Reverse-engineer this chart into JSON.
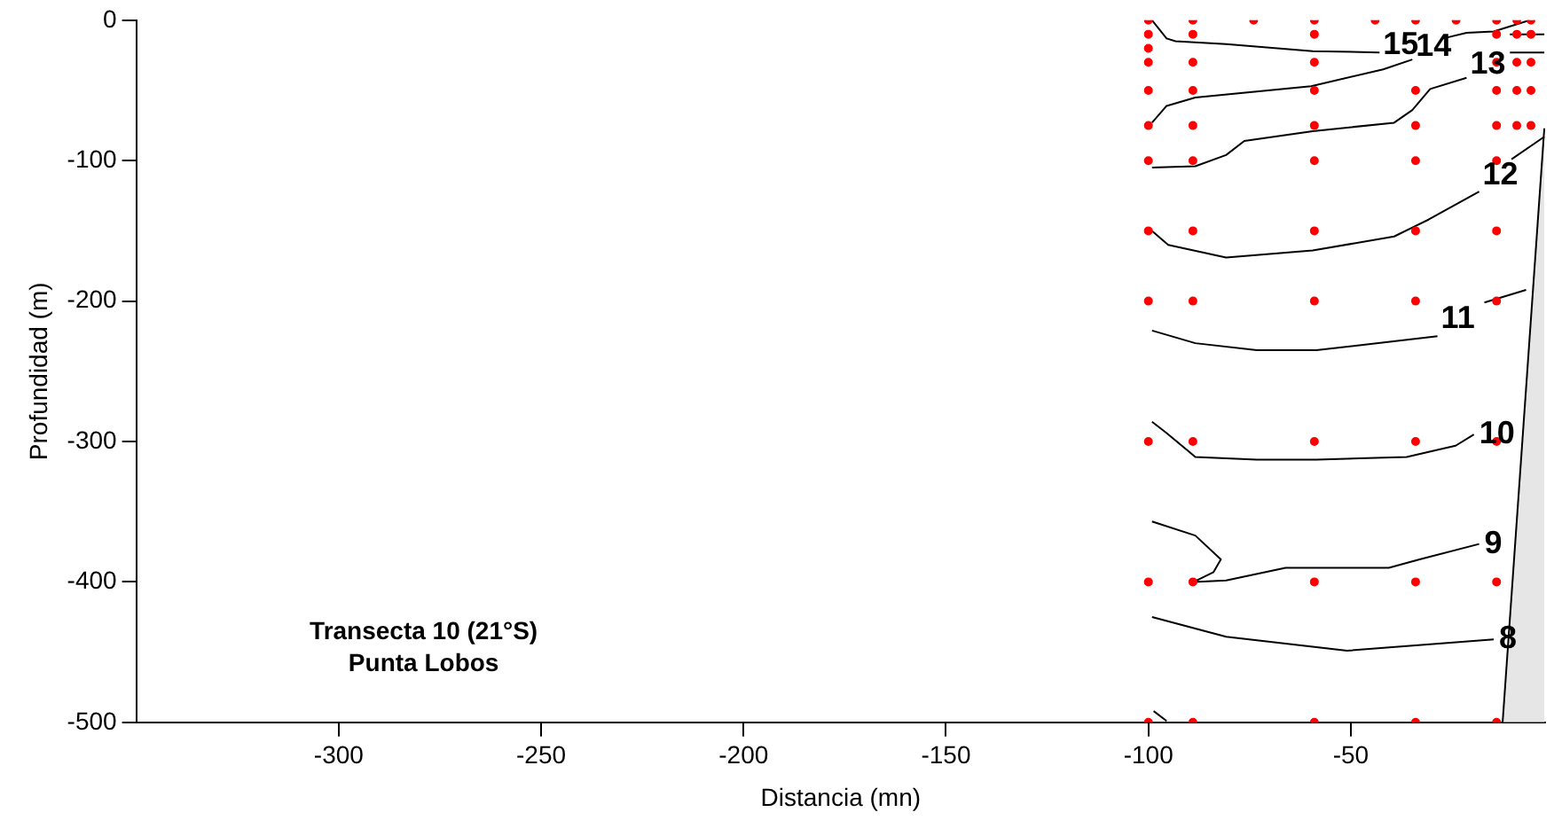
{
  "chart_data": {
    "type": "line",
    "xlabel": "Distancia (mn)",
    "ylabel": "Profundidad (m)",
    "xlim": [
      -350,
      -2
    ],
    "ylim": [
      -500,
      0
    ],
    "xticks": [
      -300,
      -250,
      -200,
      -150,
      -100,
      -50
    ],
    "yticks": [
      -500,
      -400,
      -300,
      -200,
      -100,
      0
    ],
    "grid": false,
    "legend": false,
    "marker": "none",
    "line_style": "solid",
    "series": [
      {
        "type": "area",
        "color": "#e6e6e6",
        "x": [
          -12.5,
          -2.2
        ],
        "values": [
          -500,
          -77
        ]
      },
      {
        "name": "15",
        "color": "#000000",
        "x": [
          -99.1,
          -95.5,
          -93.3,
          -80.8,
          -59.4,
          -42.9,
          -35,
          -27.2,
          -21.4,
          -14.7,
          -5.8
        ],
        "values": [
          0,
          -13,
          -15,
          -17,
          -22,
          -23,
          null,
          -13,
          -9,
          -8,
          0
        ]
      },
      {
        "name": "14",
        "color": "#000000",
        "x": [
          -99.1,
          -95.5,
          -88.4,
          -59.8,
          -42,
          -34.8,
          -20,
          -10.7,
          -2.2
        ],
        "values": [
          -73,
          -61,
          -55,
          -47,
          -35,
          -28,
          null,
          -10,
          -10
        ]
      },
      {
        "name": "13",
        "color": "#000000",
        "x": [
          -99.1,
          -88.4,
          -80.8,
          -76.3,
          -59.4,
          -39.3,
          -34.8,
          -30.4,
          -21.4,
          -15,
          -10.7,
          -2.2
        ],
        "values": [
          -105,
          -104,
          -96,
          -86,
          -79,
          -73,
          -64,
          -49,
          -41,
          null,
          -23,
          -23
        ]
      },
      {
        "name": "12",
        "color": "#000000",
        "x": [
          -99.1,
          -95.1,
          -80.8,
          -59.4,
          -39.3,
          -30.8,
          -18.3,
          -14,
          -10.3,
          -2.2
        ],
        "values": [
          -150,
          -160,
          -169,
          -164,
          -154,
          -142,
          -122,
          null,
          -99,
          -83
        ]
      },
      {
        "name": "11",
        "color": "#000000",
        "x": [
          -99.1,
          -88.4,
          -73.2,
          -58.5,
          -28.6,
          -22,
          -17,
          -6.7
        ],
        "values": [
          -221,
          -230,
          -235,
          -235,
          -225,
          null,
          -201,
          -192
        ]
      },
      {
        "name": "10",
        "color": "#000000",
        "x": [
          -99.1,
          -95.5,
          -88.4,
          -73.2,
          -58.5,
          -36.2,
          -24.1,
          -19.6
        ],
        "values": [
          -286,
          -294,
          -311,
          -313,
          -313,
          -311,
          -303,
          -295
        ]
      },
      {
        "name": "9",
        "color": "#000000",
        "x": [
          -99.1,
          -88.4,
          -82.1,
          -83.9,
          -88.8,
          -80.8,
          -66.1,
          -40.6,
          -33,
          -18.3
        ],
        "values": [
          -357,
          -367,
          -384,
          -393,
          -400,
          -399,
          -390,
          -390,
          -384,
          -373
        ]
      },
      {
        "name": "8",
        "color": "#000000",
        "x": [
          -99.1,
          -80.8,
          -50.9,
          -14.7
        ],
        "values": [
          -425,
          -439,
          -449,
          -441
        ]
      },
      {
        "color": "#000000",
        "x": [
          -98.7,
          -95.5
        ],
        "values": [
          -492,
          -499
        ]
      },
      {
        "type": "scatter",
        "color": "#ff0000",
        "marker": "circle",
        "x": [
          -100,
          -100,
          -100,
          -100,
          -100,
          -100,
          -100,
          -100,
          -100,
          -100,
          -100,
          -100,
          -89,
          -89,
          -89,
          -89,
          -89,
          -89,
          -89,
          -89,
          -89,
          -89,
          -89,
          -74,
          -59,
          -59,
          -59,
          -59,
          -59,
          -59,
          -59,
          -59,
          -59,
          -59,
          -59,
          -44,
          -34,
          -34,
          -34,
          -34,
          -34,
          -34,
          -34,
          -34,
          -34,
          -24,
          -14,
          -14,
          -14,
          -14,
          -14,
          -14,
          -14,
          -14,
          -14,
          -14,
          -14,
          -9,
          -9,
          -9,
          -9,
          -9,
          -5.5,
          -5.5,
          -5.5,
          -5.5,
          -5.5
        ],
        "values": [
          0,
          -10,
          -20,
          -30,
          -50,
          -75,
          -100,
          -150,
          -200,
          -300,
          -400,
          -500,
          0,
          -10,
          -30,
          -50,
          -75,
          -100,
          -150,
          -200,
          -300,
          -400,
          -500,
          0,
          0,
          -10,
          -30,
          -50,
          -75,
          -100,
          -150,
          -200,
          -300,
          -400,
          -500,
          0,
          0,
          -50,
          -75,
          -100,
          -150,
          -200,
          -300,
          -400,
          -500,
          0,
          0,
          -10,
          -30,
          -50,
          -75,
          -100,
          -150,
          -200,
          -300,
          -400,
          -500,
          0,
          -10,
          -30,
          -50,
          -75,
          0,
          -10,
          -30,
          -50,
          -75
        ]
      }
    ],
    "annotations": [
      "Transecta 10 (21°S)",
      "Punta Lobos"
    ]
  }
}
